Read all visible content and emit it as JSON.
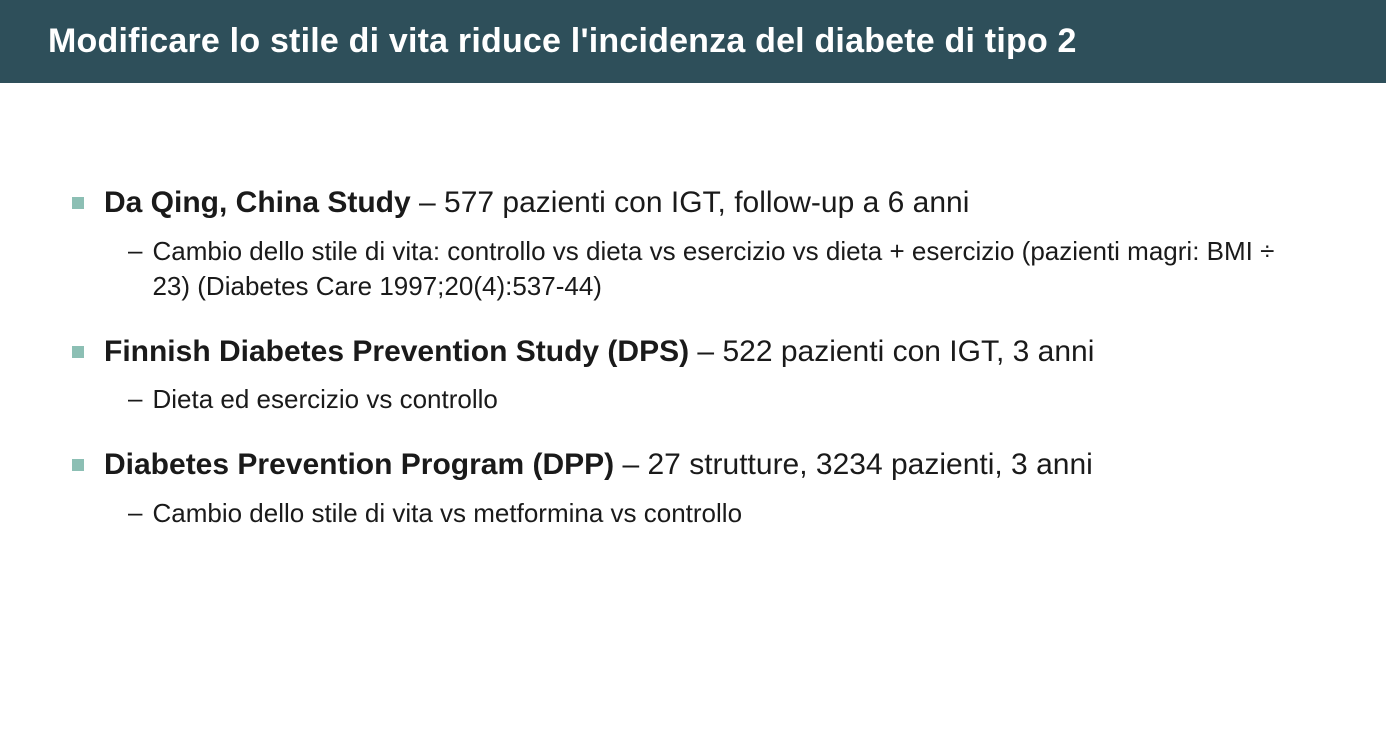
{
  "header": {
    "title": "Modificare lo stile di vita riduce l'incidenza del diabete di tipo 2"
  },
  "colors": {
    "header_bg": "#2e4f5a",
    "header_text": "#ffffff",
    "bullet_marker": "#8cbfb4",
    "body_text": "#1a1a1a",
    "page_bg": "#ffffff"
  },
  "studies": [
    {
      "name": "Da Qing, China Study",
      "summary": " – 577 pazienti con IGT, follow-up a 6 anni",
      "detail": "Cambio dello stile di vita: controllo vs dieta vs esercizio vs dieta + esercizio (pazienti magri: BMI ÷ 23) (Diabetes Care 1997;20(4):537-44)"
    },
    {
      "name": "Finnish Diabetes Prevention Study (DPS)",
      "summary": " – 522 pazienti con IGT, 3 anni",
      "detail": "Dieta ed esercizio vs controllo"
    },
    {
      "name": "Diabetes Prevention Program (DPP)",
      "summary": " – 27 strutture, 3234 pazienti, 3 anni",
      "detail": "Cambio dello stile di vita vs metformina vs controllo"
    }
  ]
}
